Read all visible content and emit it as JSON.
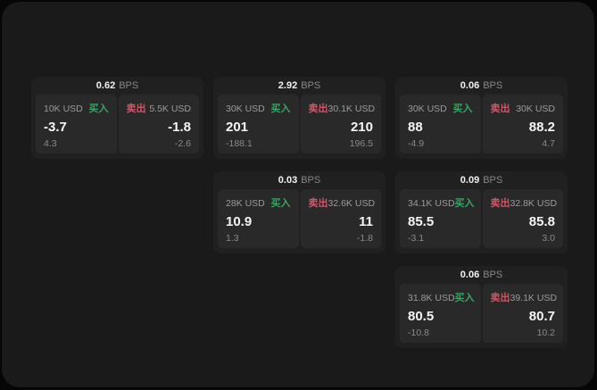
{
  "colors": {
    "buy_green": "#38a563",
    "sell_rose": "#d25568",
    "panel_bg": "#1a1a1a",
    "card_bg": "#202020",
    "tile_bg": "#292929"
  },
  "labels": {
    "bps_unit": "BPS",
    "buy": "买入",
    "sell": "卖出"
  },
  "cards": [
    {
      "row": 1,
      "col": 1,
      "bps": "0.62",
      "unit": "BPS",
      "buy": {
        "amount": "10K USD",
        "side": "买入",
        "value": "-3.7",
        "delta": "4.3"
      },
      "sell": {
        "amount": "5.5K USD",
        "side": "卖出",
        "value": "-1.8",
        "delta": "-2.6"
      }
    },
    {
      "row": 1,
      "col": 2,
      "bps": "2.92",
      "unit": "BPS",
      "buy": {
        "amount": "30K USD",
        "side": "买入",
        "value": "201",
        "delta": "-188.1"
      },
      "sell": {
        "amount": "30.1K USD",
        "side": "卖出",
        "value": "210",
        "delta": "196.5"
      }
    },
    {
      "row": 1,
      "col": 3,
      "bps": "0.06",
      "unit": "BPS",
      "buy": {
        "amount": "30K USD",
        "side": "买入",
        "value": "88",
        "delta": "-4.9"
      },
      "sell": {
        "amount": "30K USD",
        "side": "卖出",
        "value": "88.2",
        "delta": "4.7"
      }
    },
    {
      "row": 2,
      "col": 2,
      "bps": "0.03",
      "unit": "BPS",
      "buy": {
        "amount": "28K USD",
        "side": "买入",
        "value": "10.9",
        "delta": "1.3"
      },
      "sell": {
        "amount": "32.6K USD",
        "side": "卖出",
        "value": "11",
        "delta": "-1.8"
      }
    },
    {
      "row": 2,
      "col": 3,
      "bps": "0.09",
      "unit": "BPS",
      "buy": {
        "amount": "34.1K USD",
        "side": "买入",
        "value": "85.5",
        "delta": "-3.1"
      },
      "sell": {
        "amount": "32.8K USD",
        "side": "卖出",
        "value": "85.8",
        "delta": "3.0"
      }
    },
    {
      "row": 3,
      "col": 3,
      "bps": "0.06",
      "unit": "BPS",
      "buy": {
        "amount": "31.8K USD",
        "side": "买入",
        "value": "80.5",
        "delta": "-10.8"
      },
      "sell": {
        "amount": "39.1K USD",
        "side": "卖出",
        "value": "80.7",
        "delta": "10.2"
      }
    }
  ]
}
